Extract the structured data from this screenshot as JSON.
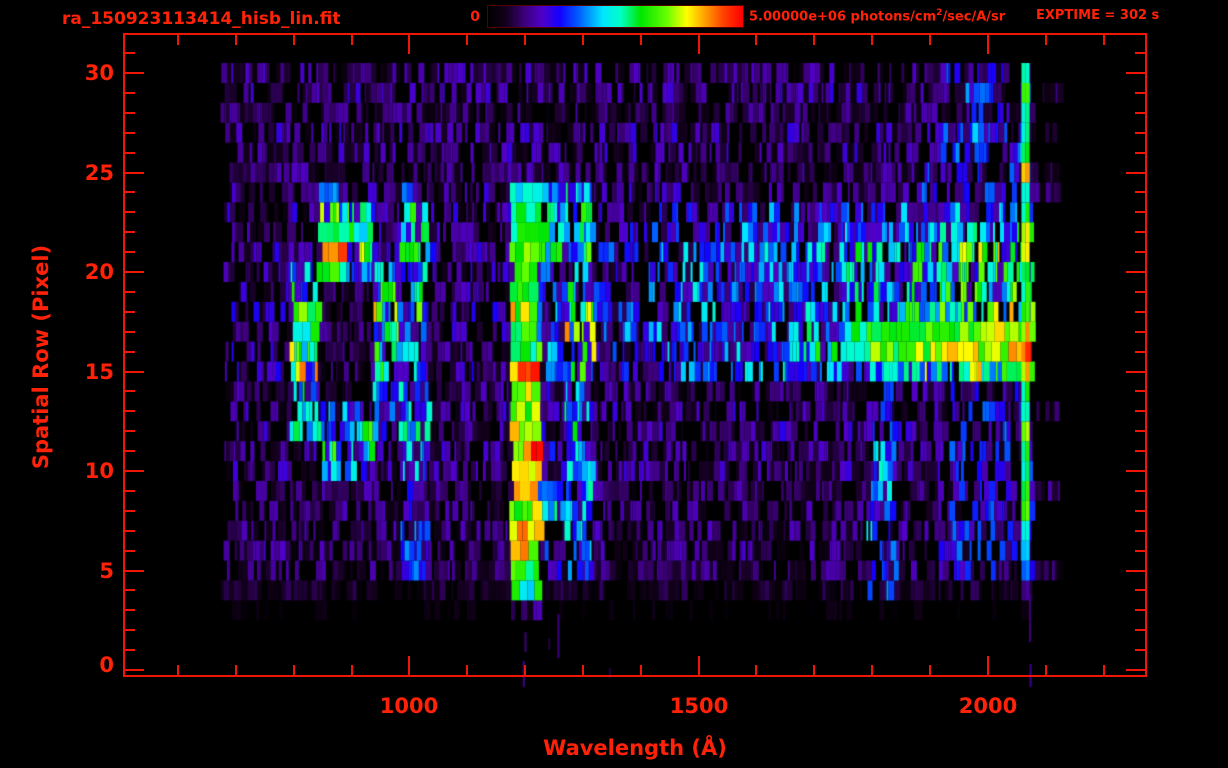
{
  "header": {
    "title": "ra_150923113414_hisb_lin.fit",
    "colorbar": {
      "min_label": "0",
      "max_prefix": "5.00000e+06 photons/cm",
      "max_sup": "2",
      "max_suffix": "/sec/A/sr"
    },
    "exptime": "EXPTIME = 302 s"
  },
  "colors": {
    "accent_red": "#ff2208",
    "frame_red": "#f01606",
    "background": "#000000"
  },
  "chart_data": {
    "type": "heatmap",
    "title": "ra_150923113414_hisb_lin.fit",
    "xlabel": "Wavelength (Å)",
    "ylabel": "Spatial Row (Pixel)",
    "colorbar_scale": {
      "min": 0,
      "max": 5000000,
      "units": "photons/cm2/sec/A/sr"
    },
    "exposure_time_s": 302,
    "x_axis": {
      "lim": [
        505,
        2275
      ],
      "major_ticks": [
        1000,
        1500,
        2000
      ],
      "major_labels": [
        "1000",
        "1500",
        "2000"
      ],
      "minor_tick_step": 100,
      "minor_tick_range": [
        600,
        2200
      ]
    },
    "y_axis": {
      "lim": [
        0,
        32
      ],
      "major_ticks": [
        0,
        5,
        10,
        15,
        20,
        25,
        30
      ],
      "major_labels": [
        "0",
        "5",
        "10",
        "15",
        "20",
        "25",
        "30"
      ],
      "minor_tick_step": 1
    },
    "grid": false,
    "wavelength_bins": {
      "start": 650,
      "step": 47.5,
      "count": 31
    },
    "spatial_rows": {
      "from": 0,
      "to": 30
    },
    "data_wavelength_range": [
      671,
      2072
    ],
    "colormap_stops": [
      [
        0.0,
        "#000000"
      ],
      [
        0.07,
        "#14001e"
      ],
      [
        0.14,
        "#3c0078"
      ],
      [
        0.21,
        "#5000c8"
      ],
      [
        0.28,
        "#1400ff"
      ],
      [
        0.36,
        "#0064ff"
      ],
      [
        0.45,
        "#00e6ff"
      ],
      [
        0.52,
        "#00ffc8"
      ],
      [
        0.6,
        "#00e600"
      ],
      [
        0.7,
        "#64ff00"
      ],
      [
        0.78,
        "#ffff00"
      ],
      [
        0.86,
        "#ff9600"
      ],
      [
        0.93,
        "#ff3c00"
      ],
      [
        1.0,
        "#ff0000"
      ]
    ],
    "intensity_pct": [
      [
        0,
        0,
        0,
        0,
        0,
        0,
        0,
        0,
        0,
        0,
        0,
        0,
        0,
        0,
        0,
        0,
        0,
        0,
        0,
        0,
        0,
        0,
        0,
        0,
        0,
        0,
        0,
        0,
        0,
        0,
        0
      ],
      [
        0,
        0,
        0,
        0,
        0,
        0,
        0,
        0,
        0,
        0,
        0,
        0,
        0,
        0,
        0,
        0,
        0,
        0,
        0,
        0,
        0,
        0,
        0,
        0,
        0,
        0,
        0,
        0,
        0,
        0,
        0
      ],
      [
        0,
        0,
        0,
        0,
        0,
        0,
        0,
        0,
        0,
        0,
        0,
        0,
        0,
        0,
        0,
        0,
        0,
        0,
        0,
        0,
        0,
        0,
        0,
        0,
        0,
        0,
        0,
        0,
        0,
        0,
        0
      ],
      [
        3,
        3,
        3,
        3,
        3,
        3,
        3,
        3,
        3,
        3,
        3,
        12,
        3,
        3,
        3,
        3,
        3,
        3,
        3,
        3,
        3,
        3,
        3,
        3,
        3,
        3,
        3,
        3,
        3,
        0,
        0
      ],
      [
        6,
        6,
        6,
        6,
        6,
        6,
        6,
        6,
        6,
        6,
        6,
        55,
        6,
        6,
        6,
        6,
        6,
        6,
        6,
        6,
        6,
        6,
        6,
        6,
        24,
        6,
        6,
        6,
        6,
        6,
        0
      ],
      [
        10,
        10,
        10,
        10,
        10,
        10,
        10,
        28,
        10,
        10,
        10,
        66,
        18,
        32,
        10,
        10,
        10,
        10,
        10,
        10,
        10,
        10,
        10,
        10,
        24,
        12,
        12,
        18,
        18,
        18,
        8
      ],
      [
        10,
        10,
        10,
        10,
        10,
        10,
        10,
        28,
        10,
        10,
        10,
        76,
        16,
        34,
        10,
        10,
        10,
        10,
        10,
        10,
        10,
        10,
        10,
        10,
        24,
        12,
        12,
        18,
        18,
        18,
        0
      ],
      [
        10,
        10,
        10,
        10,
        10,
        10,
        10,
        28,
        10,
        10,
        10,
        84,
        20,
        34,
        10,
        10,
        10,
        10,
        10,
        10,
        10,
        10,
        10,
        10,
        24,
        10,
        10,
        18,
        18,
        18,
        0
      ],
      [
        10,
        10,
        10,
        10,
        10,
        10,
        10,
        28,
        10,
        10,
        10,
        72,
        40,
        36,
        10,
        10,
        10,
        10,
        10,
        10,
        10,
        10,
        10,
        10,
        24,
        10,
        10,
        18,
        18,
        18,
        0
      ],
      [
        10,
        10,
        10,
        10,
        10,
        10,
        10,
        28,
        10,
        10,
        10,
        84,
        38,
        38,
        10,
        10,
        10,
        10,
        10,
        10,
        10,
        10,
        10,
        10,
        24,
        10,
        10,
        18,
        18,
        18,
        10
      ],
      [
        11,
        11,
        11,
        11,
        36,
        24,
        11,
        33,
        11,
        11,
        11,
        78,
        15,
        36,
        11,
        11,
        11,
        11,
        11,
        11,
        11,
        11,
        11,
        11,
        24,
        11,
        11,
        18,
        18,
        18,
        0
      ],
      [
        11,
        11,
        11,
        11,
        48,
        40,
        11,
        33,
        11,
        11,
        11,
        84,
        15,
        38,
        11,
        11,
        11,
        11,
        11,
        11,
        11,
        11,
        11,
        11,
        24,
        11,
        11,
        18,
        18,
        18,
        0
      ],
      [
        11,
        11,
        11,
        34,
        45,
        42,
        24,
        33,
        11,
        11,
        11,
        76,
        15,
        36,
        11,
        11,
        11,
        11,
        11,
        11,
        11,
        11,
        11,
        11,
        24,
        11,
        11,
        18,
        18,
        18,
        0
      ],
      [
        11,
        11,
        11,
        40,
        22,
        26,
        34,
        33,
        11,
        11,
        11,
        68,
        15,
        36,
        11,
        11,
        11,
        11,
        11,
        11,
        11,
        11,
        11,
        11,
        24,
        11,
        11,
        18,
        18,
        18,
        8
      ],
      [
        11,
        11,
        11,
        46,
        8,
        8,
        38,
        33,
        11,
        11,
        11,
        78,
        15,
        36,
        11,
        11,
        11,
        11,
        11,
        11,
        11,
        11,
        11,
        11,
        24,
        11,
        11,
        18,
        18,
        18,
        0
      ],
      [
        12,
        12,
        12,
        50,
        8,
        8,
        42,
        33,
        12,
        12,
        12,
        72,
        18,
        40,
        12,
        14,
        16,
        18,
        20,
        22,
        23,
        25,
        26,
        28,
        30,
        32,
        45,
        48,
        50,
        55,
        0
      ],
      [
        12,
        12,
        12,
        52,
        8,
        8,
        44,
        33,
        12,
        12,
        12,
        58,
        30,
        52,
        18,
        20,
        22,
        25,
        28,
        30,
        33,
        36,
        40,
        58,
        62,
        64,
        70,
        74,
        76,
        80,
        0
      ],
      [
        12,
        12,
        12,
        55,
        8,
        8,
        46,
        33,
        12,
        12,
        12,
        60,
        28,
        54,
        18,
        20,
        23,
        26,
        28,
        31,
        33,
        36,
        38,
        55,
        58,
        60,
        64,
        66,
        68,
        72,
        0
      ],
      [
        12,
        12,
        12,
        56,
        8,
        8,
        48,
        45,
        12,
        12,
        12,
        64,
        20,
        50,
        15,
        17,
        19,
        21,
        23,
        25,
        28,
        30,
        32,
        35,
        37,
        39,
        41,
        44,
        46,
        48,
        0
      ],
      [
        12,
        12,
        12,
        52,
        8,
        8,
        45,
        45,
        12,
        12,
        12,
        60,
        18,
        40,
        17,
        19,
        21,
        24,
        26,
        28,
        31,
        33,
        35,
        38,
        41,
        43,
        45,
        48,
        50,
        53,
        0
      ],
      [
        12,
        12,
        12,
        40,
        62,
        35,
        35,
        45,
        12,
        12,
        12,
        68,
        20,
        38,
        17,
        19,
        21,
        24,
        26,
        28,
        31,
        33,
        35,
        38,
        41,
        43,
        45,
        48,
        50,
        53,
        0
      ],
      [
        12,
        12,
        12,
        12,
        72,
        50,
        12,
        45,
        12,
        12,
        12,
        64,
        40,
        40,
        16,
        18,
        20,
        23,
        25,
        27,
        30,
        32,
        34,
        36,
        39,
        41,
        43,
        46,
        48,
        50,
        0
      ],
      [
        12,
        12,
        12,
        12,
        66,
        58,
        12,
        45,
        12,
        12,
        12,
        58,
        48,
        44,
        14,
        16,
        18,
        20,
        22,
        24,
        27,
        29,
        31,
        33,
        35,
        36,
        38,
        41,
        43,
        45,
        0
      ],
      [
        12,
        12,
        12,
        12,
        50,
        45,
        12,
        45,
        12,
        12,
        12,
        62,
        45,
        44,
        12,
        13,
        15,
        17,
        18,
        20,
        22,
        24,
        25,
        27,
        29,
        30,
        32,
        34,
        36,
        38,
        0
      ],
      [
        12,
        12,
        12,
        12,
        30,
        12,
        12,
        40,
        12,
        12,
        12,
        55,
        35,
        40,
        12,
        12,
        12,
        12,
        12,
        12,
        12,
        12,
        12,
        12,
        12,
        12,
        20,
        20,
        20,
        20,
        10
      ],
      [
        10,
        10,
        10,
        10,
        10,
        10,
        10,
        10,
        10,
        10,
        10,
        10,
        10,
        10,
        10,
        10,
        10,
        10,
        10,
        10,
        10,
        10,
        10,
        10,
        10,
        10,
        18,
        18,
        18,
        18,
        10
      ],
      [
        10,
        10,
        10,
        10,
        10,
        10,
        10,
        10,
        10,
        10,
        10,
        10,
        10,
        10,
        10,
        10,
        10,
        10,
        10,
        10,
        10,
        10,
        10,
        10,
        10,
        10,
        18,
        18,
        18,
        18,
        0
      ],
      [
        10,
        10,
        10,
        10,
        10,
        10,
        10,
        10,
        10,
        10,
        10,
        10,
        10,
        10,
        10,
        10,
        10,
        10,
        10,
        10,
        10,
        10,
        10,
        10,
        10,
        10,
        18,
        18,
        18,
        18,
        8
      ],
      [
        10,
        10,
        10,
        10,
        10,
        10,
        10,
        10,
        10,
        10,
        10,
        10,
        10,
        10,
        10,
        10,
        10,
        10,
        10,
        10,
        10,
        10,
        10,
        10,
        10,
        10,
        18,
        18,
        18,
        18,
        0
      ],
      [
        10,
        10,
        10,
        10,
        10,
        10,
        10,
        10,
        10,
        10,
        10,
        10,
        10,
        10,
        10,
        10,
        10,
        10,
        10,
        10,
        10,
        10,
        10,
        10,
        10,
        10,
        18,
        18,
        18,
        18,
        8
      ],
      [
        10,
        10,
        10,
        10,
        10,
        10,
        10,
        10,
        10,
        10,
        10,
        10,
        10,
        10,
        10,
        10,
        10,
        10,
        10,
        10,
        10,
        10,
        10,
        10,
        10,
        10,
        16,
        16,
        16,
        16,
        0
      ]
    ],
    "right_edge_column_pct": [
      0,
      0,
      0,
      4,
      16,
      36,
      44,
      50,
      70,
      60,
      54,
      58,
      76,
      55,
      58,
      86,
      95,
      84,
      66,
      60,
      62,
      82,
      78,
      58,
      55,
      85,
      60,
      52,
      55,
      70,
      55
    ],
    "features": [
      {
        "name": "ring-structure",
        "wavelength_range": [
          790,
          960
        ],
        "rows": [
          10,
          23
        ]
      },
      {
        "name": "vertical-emission-stripe",
        "wavelength": 1026,
        "rows": [
          5,
          24
        ]
      },
      {
        "name": "bright-vertical-emission-stripe",
        "wavelength": 1216,
        "rows": [
          4,
          24
        ]
      },
      {
        "name": "vertical-emission-stripe",
        "wavelength": 1304,
        "rows": [
          5,
          24
        ]
      },
      {
        "name": "continuum-band",
        "wavelength_range": [
          1315,
          2072
        ],
        "rows": [
          15,
          23
        ]
      },
      {
        "name": "bright-continuum-core",
        "wavelength_range": [
          1740,
          2072
        ],
        "rows": [
          15,
          17
        ]
      },
      {
        "name": "hot-right-edge-column",
        "wavelength_range": [
          2058,
          2072
        ],
        "rows": [
          4,
          30
        ]
      }
    ],
    "sub_frame_artifacts": [
      {
        "wavelength": 1196,
        "row_from": 0.45,
        "row_to": -0.85,
        "pct": 16
      },
      {
        "wavelength": 1193,
        "row_from": 3.3,
        "row_to": 2.6,
        "pct": 12
      },
      {
        "wavelength": 1199,
        "row_from": 1.9,
        "row_to": 0.9,
        "pct": 14
      },
      {
        "wavelength": 1256,
        "row_from": 2.8,
        "row_to": 0.6,
        "pct": 15
      },
      {
        "wavelength": 1240,
        "row_from": 1.6,
        "row_to": 1.0,
        "pct": 10
      },
      {
        "wavelength": 1345,
        "row_from": 0.1,
        "row_to": -0.4,
        "pct": 10
      },
      {
        "wavelength": 2071,
        "row_from": 3.8,
        "row_to": 1.4,
        "pct": 14
      },
      {
        "wavelength": 2072,
        "row_from": 0.3,
        "row_to": -0.85,
        "pct": 16
      }
    ]
  }
}
